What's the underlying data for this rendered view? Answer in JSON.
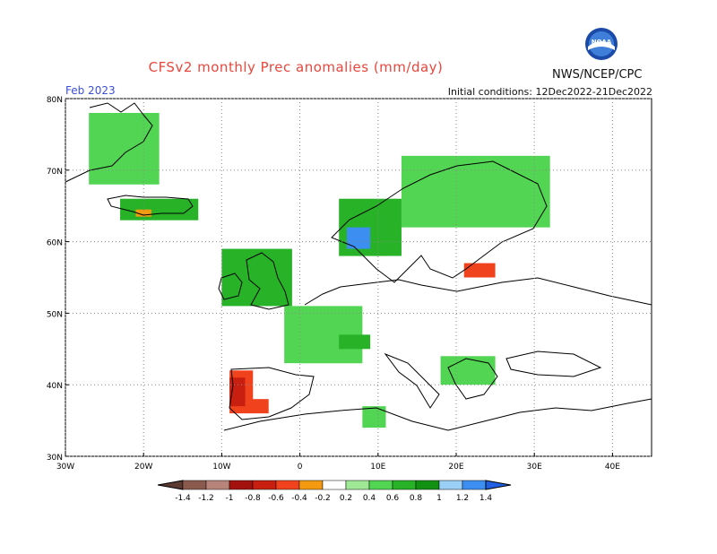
{
  "header": {
    "title": "CFSv2 monthly Prec anomalies (mm/day)",
    "agency": "NWS/NCEP/CPC",
    "logo_text": "NOAA",
    "month": "Feb 2023",
    "initial_conditions": "Initial conditions: 12Dec2022-21Dec2022"
  },
  "map": {
    "lon_range": [
      -30,
      45
    ],
    "lat_range": [
      30,
      80
    ],
    "lat_ticks": [
      "80N",
      "70N",
      "60N",
      "50N",
      "40N",
      "30N"
    ],
    "lon_ticks": [
      "30W",
      "20W",
      "10W",
      "0",
      "10E",
      "20E",
      "30E",
      "40E"
    ],
    "grid": "dotted",
    "anomalies": [
      {
        "region": "Greenland east coast",
        "lon": [
          -27,
          -18
        ],
        "lat": [
          68,
          78
        ],
        "level": 0.4
      },
      {
        "region": "Iceland",
        "lon": [
          -23,
          -13
        ],
        "lat": [
          63,
          66
        ],
        "level": 0.6
      },
      {
        "region": "Iceland SW",
        "lon": [
          -21,
          -19
        ],
        "lat": [
          63.5,
          64.5
        ],
        "level": -0.4
      },
      {
        "region": "Ireland/UK",
        "lon": [
          -10,
          -1
        ],
        "lat": [
          51,
          59
        ],
        "level": 0.6
      },
      {
        "region": "France",
        "lon": [
          -2,
          8
        ],
        "lat": [
          43,
          51
        ],
        "level": 0.4
      },
      {
        "region": "Alps",
        "lon": [
          5,
          9
        ],
        "lat": [
          45,
          47
        ],
        "level": 0.6
      },
      {
        "region": "Norway coast",
        "lon": [
          5,
          13
        ],
        "lat": [
          58,
          66
        ],
        "level": 0.6
      },
      {
        "region": "Norway SW",
        "lon": [
          6,
          9
        ],
        "lat": [
          59,
          62
        ],
        "level": 1.2
      },
      {
        "region": "Scandinavia north",
        "lon": [
          13,
          32
        ],
        "lat": [
          62,
          72
        ],
        "level": 0.4
      },
      {
        "region": "Baltic/Poland",
        "lon": [
          11,
          28
        ],
        "lat": [
          50,
          58
        ],
        "level": -0.2
      },
      {
        "region": "Latvia",
        "lon": [
          21,
          25
        ],
        "lat": [
          55,
          57
        ],
        "level": -0.6
      },
      {
        "region": "Romania",
        "lon": [
          20,
          25
        ],
        "lat": [
          44,
          46
        ],
        "level": -0.2
      },
      {
        "region": "Balkans",
        "lon": [
          18,
          25
        ],
        "lat": [
          40,
          44
        ],
        "level": 0.4
      },
      {
        "region": "Iberia west",
        "lon": [
          -9,
          -4
        ],
        "lat": [
          36,
          42
        ],
        "level": -0.6
      },
      {
        "region": "Iberia east",
        "lon": [
          -6,
          0
        ],
        "lat": [
          38,
          43
        ],
        "level": -0.2
      },
      {
        "region": "Portugal",
        "lon": [
          -9,
          -7
        ],
        "lat": [
          37,
          41
        ],
        "level": -0.8
      },
      {
        "region": "Morocco",
        "lon": [
          -9,
          -5
        ],
        "lat": [
          32,
          35
        ],
        "level": -0.2
      },
      {
        "region": "Tunisia",
        "lon": [
          8,
          11
        ],
        "lat": [
          34,
          37
        ],
        "level": 0.4
      }
    ]
  },
  "legend": {
    "labels": [
      "-1.4",
      "-1.2",
      "-1",
      "-0.8",
      "-0.6",
      "-0.4",
      "-0.2",
      "0.2",
      "0.4",
      "0.6",
      "0.8",
      "1",
      "1.2",
      "1.4"
    ],
    "colors": [
      "#8a5a4e",
      "#b7847a",
      "#a3120e",
      "#c81f10",
      "#f0431d",
      "#f39a10",
      "#ffffff",
      "#9fe996",
      "#52d552",
      "#27b227",
      "#129012",
      "#9ad0f5",
      "#3c8ff0"
    ],
    "low_arrow_color": "#5c3a32",
    "high_arrow_color": "#1f5fe0"
  }
}
